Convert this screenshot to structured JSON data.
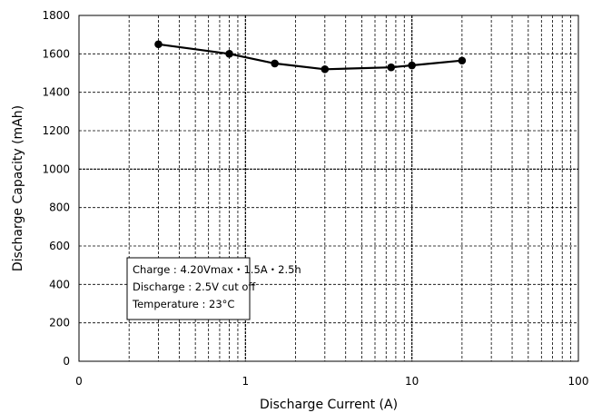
{
  "chart_data": {
    "type": "line",
    "xlabel": "Discharge  Current (A)",
    "ylabel": "Discharge  Capacity (mAh)",
    "x_scale": "log",
    "xlim": [
      0.1,
      100
    ],
    "ylim": [
      0,
      1800
    ],
    "x_tick_labels": [
      "0",
      "1",
      "10",
      "100"
    ],
    "y_ticks": [
      "0",
      "200",
      "400",
      "600",
      "800",
      "1000",
      "1200",
      "1400",
      "1600",
      "1800"
    ],
    "grid": true,
    "series": [
      {
        "x": [
          0.3,
          0.8,
          1.5,
          3,
          7.5,
          10,
          20
        ],
        "y": [
          1650,
          1600,
          1550,
          1520,
          1530,
          1540,
          1565
        ],
        "color": "#000000",
        "marker": "circle"
      }
    ],
    "annotation": {
      "lines": [
        "Charge : 4.20Vmax・1.5A・2.5h",
        "Discharge : 2.5V cut off",
        "Temperature  : 23°C"
      ]
    }
  }
}
